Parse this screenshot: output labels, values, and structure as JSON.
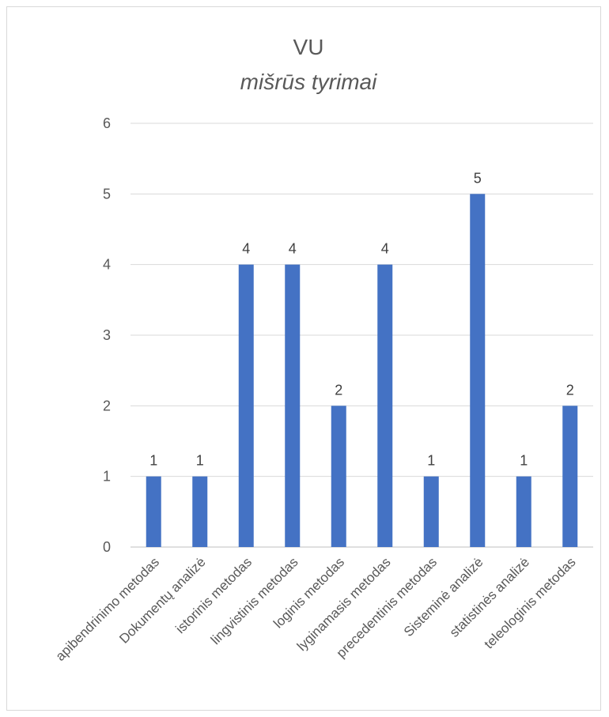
{
  "chart_data": {
    "type": "bar",
    "title": "VU",
    "subtitle": "mišrūs tyrimai",
    "categories": [
      "apibendrinimo metodas",
      "Dokumentų analizė",
      "istorinis metodas",
      "lingvistinis metodas",
      "loginis metodas",
      "lyginamasis metodas",
      "precedentinis metodas",
      "Sisteminė analizė",
      "statistinės analizė",
      "teleologinis metodas"
    ],
    "values": [
      1,
      1,
      4,
      4,
      2,
      4,
      1,
      5,
      1,
      2
    ],
    "ylim": [
      0,
      6
    ],
    "yticks": [
      0,
      1,
      2,
      3,
      4,
      5,
      6
    ],
    "grid": true,
    "legend": "none",
    "colors": {
      "bar": "#4472C4"
    }
  }
}
